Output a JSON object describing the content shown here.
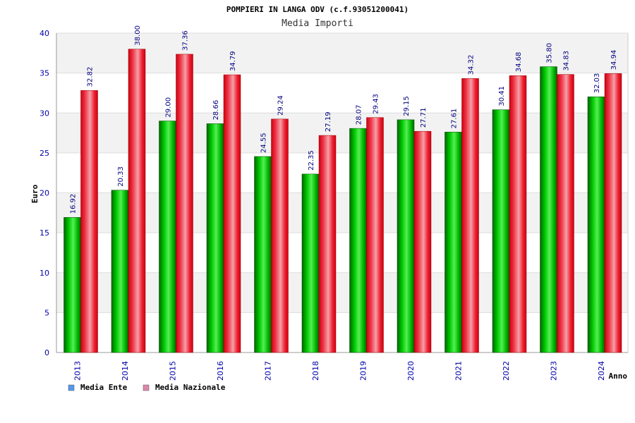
{
  "chart_data": {
    "type": "bar",
    "title": "POMPIERI IN LANGA ODV (c.f.93051200041)",
    "subtitle": "Media Importi",
    "ylabel": "Euro",
    "xlabel": "Anno",
    "ylim": [
      0,
      40
    ],
    "yticks": [
      0,
      5,
      10,
      15,
      20,
      25,
      30,
      35,
      40
    ],
    "grid": true,
    "legend_position": "bottom-left",
    "categories": [
      "2013",
      "2014",
      "2015",
      "2016",
      "2017",
      "2018",
      "2019",
      "2020",
      "2021",
      "2022",
      "2023",
      "2024"
    ],
    "series": [
      {
        "name": "Media Ente",
        "color": "#00aa00",
        "legend_color": "#5599ee",
        "values": [
          16.92,
          20.33,
          29.0,
          28.66,
          24.55,
          22.35,
          28.07,
          29.15,
          27.61,
          30.41,
          35.8,
          32.03
        ],
        "labels": [
          "16.92",
          "20.33",
          "29.00",
          "28.66",
          "24.55",
          "22.35",
          "28.07",
          "29.15",
          "27.61",
          "30.41",
          "35.80",
          "32.03"
        ]
      },
      {
        "name": "Media Nazionale",
        "color": "#ee1122",
        "legend_color": "#dd88aa",
        "values": [
          32.82,
          38.0,
          37.36,
          34.79,
          29.24,
          27.19,
          29.43,
          27.71,
          34.32,
          34.68,
          34.83,
          34.94
        ],
        "labels": [
          "32.82",
          "38.00",
          "37.36",
          "34.79",
          "29.24",
          "27.19",
          "29.43",
          "27.71",
          "34.32",
          "34.68",
          "34.83",
          "34.94"
        ]
      }
    ]
  }
}
